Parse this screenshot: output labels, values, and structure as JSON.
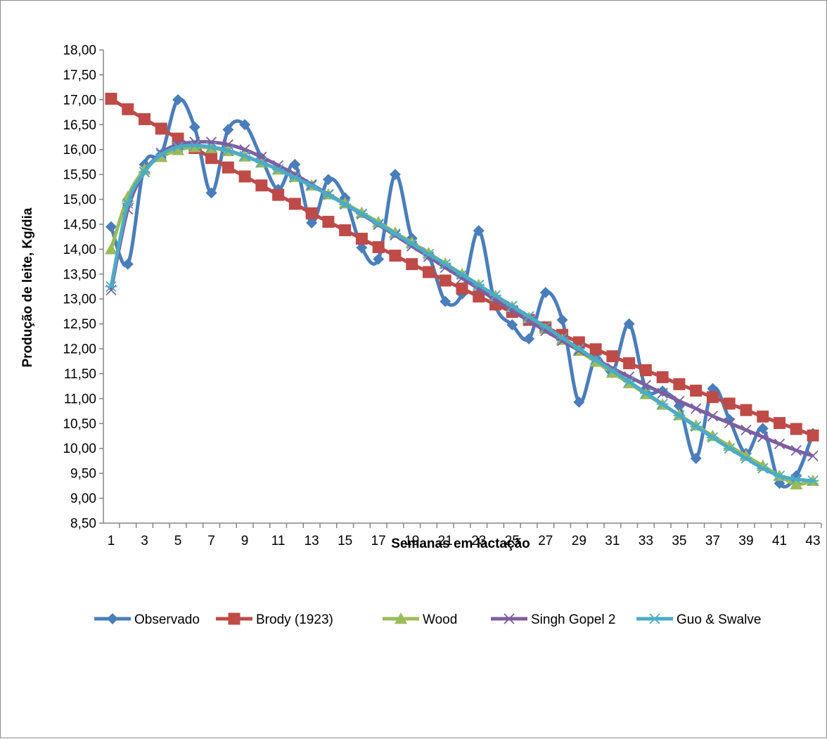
{
  "chart_data": {
    "type": "line",
    "title": "",
    "xlabel": "Semanas em lactação",
    "ylabel": "Produção de leite, Kg/dia",
    "ylim": [
      8.5,
      18.0
    ],
    "ystep": 0.5,
    "xlim": [
      1,
      43
    ],
    "xtick_labels": [
      "1",
      "3",
      "5",
      "7",
      "9",
      "11",
      "13",
      "15",
      "17",
      "19",
      "21",
      "23",
      "25",
      "27",
      "29",
      "31",
      "33",
      "35",
      "37",
      "39",
      "41",
      "43"
    ],
    "ytick_labels": [
      "8,50",
      "9,00",
      "9,50",
      "10,00",
      "10,50",
      "11,00",
      "11,50",
      "12,00",
      "12,50",
      "13,00",
      "13,50",
      "14,00",
      "14,50",
      "15,00",
      "15,50",
      "16,00",
      "16,50",
      "17,00",
      "17,50",
      "18,00"
    ],
    "legend_position": "bottom",
    "grid": false,
    "x": [
      1,
      2,
      3,
      4,
      5,
      6,
      7,
      8,
      9,
      10,
      11,
      12,
      13,
      14,
      15,
      16,
      17,
      18,
      19,
      20,
      21,
      22,
      23,
      24,
      25,
      26,
      27,
      28,
      29,
      30,
      31,
      32,
      33,
      34,
      35,
      36,
      37,
      38,
      39,
      40,
      41,
      42,
      43
    ],
    "series": [
      {
        "name": "Observado",
        "color": "#4a7ebb",
        "marker": "diamond",
        "values": [
          14.45,
          13.7,
          15.7,
          15.9,
          17.0,
          16.45,
          15.13,
          16.4,
          16.5,
          15.83,
          15.2,
          15.7,
          14.53,
          15.4,
          15.03,
          14.03,
          13.8,
          15.5,
          14.22,
          13.88,
          12.95,
          13.1,
          14.37,
          12.87,
          12.48,
          12.2,
          13.13,
          12.58,
          10.93,
          11.82,
          11.52,
          12.5,
          11.2,
          11.15,
          10.85,
          9.8,
          11.2,
          10.58,
          9.9,
          10.4,
          9.3,
          9.45,
          10.3
        ]
      },
      {
        "name": "Brody (1923)",
        "color": "#be4b48",
        "marker": "square",
        "values": [
          17.02,
          16.81,
          16.61,
          16.42,
          16.22,
          16.03,
          15.83,
          15.64,
          15.46,
          15.28,
          15.09,
          14.91,
          14.72,
          14.55,
          14.38,
          14.21,
          14.04,
          13.87,
          13.7,
          13.54,
          13.37,
          13.21,
          13.05,
          12.89,
          12.74,
          12.58,
          12.43,
          12.28,
          12.13,
          11.99,
          11.85,
          11.71,
          11.57,
          11.43,
          11.29,
          11.16,
          11.03,
          10.9,
          10.77,
          10.64,
          10.51,
          10.39,
          10.26
        ]
      },
      {
        "name": "Wood",
        "color": "#9bbb59",
        "marker": "triangle",
        "values": [
          14.0,
          15.05,
          15.6,
          15.85,
          15.99,
          16.05,
          16.03,
          15.97,
          15.86,
          15.74,
          15.6,
          15.45,
          15.28,
          15.1,
          14.92,
          14.73,
          14.54,
          14.33,
          14.13,
          13.92,
          13.71,
          13.5,
          13.28,
          13.06,
          12.84,
          12.62,
          12.4,
          12.18,
          11.96,
          11.74,
          11.52,
          11.31,
          11.09,
          10.88,
          10.67,
          10.46,
          10.25,
          10.05,
          9.85,
          9.65,
          9.45,
          9.28,
          9.35
        ]
      },
      {
        "name": "Singh Gopel 2",
        "color": "#7d5fa0",
        "marker": "x",
        "values": [
          13.18,
          14.8,
          15.55,
          15.93,
          16.1,
          16.15,
          16.15,
          16.1,
          16.0,
          15.85,
          15.68,
          15.5,
          15.3,
          15.1,
          14.9,
          14.7,
          14.49,
          14.28,
          14.06,
          13.85,
          13.63,
          13.42,
          13.2,
          12.98,
          12.77,
          12.56,
          12.36,
          12.16,
          11.97,
          11.79,
          11.61,
          11.44,
          11.27,
          11.11,
          10.95,
          10.8,
          10.65,
          10.51,
          10.37,
          10.23,
          10.09,
          9.96,
          9.85
        ]
      },
      {
        "name": "Guo & Swalve",
        "color": "#4bacc6",
        "marker": "asterisk",
        "values": [
          13.25,
          14.92,
          15.55,
          15.9,
          16.05,
          16.08,
          16.05,
          15.98,
          15.87,
          15.74,
          15.6,
          15.44,
          15.27,
          15.09,
          14.9,
          14.71,
          14.51,
          14.31,
          14.11,
          13.9,
          13.7,
          13.49,
          13.28,
          13.07,
          12.86,
          12.65,
          12.44,
          12.22,
          12.0,
          11.78,
          11.56,
          11.34,
          11.11,
          10.89,
          10.66,
          10.44,
          10.22,
          10.0,
          9.8,
          9.6,
          9.45,
          9.38,
          9.35
        ]
      }
    ]
  }
}
